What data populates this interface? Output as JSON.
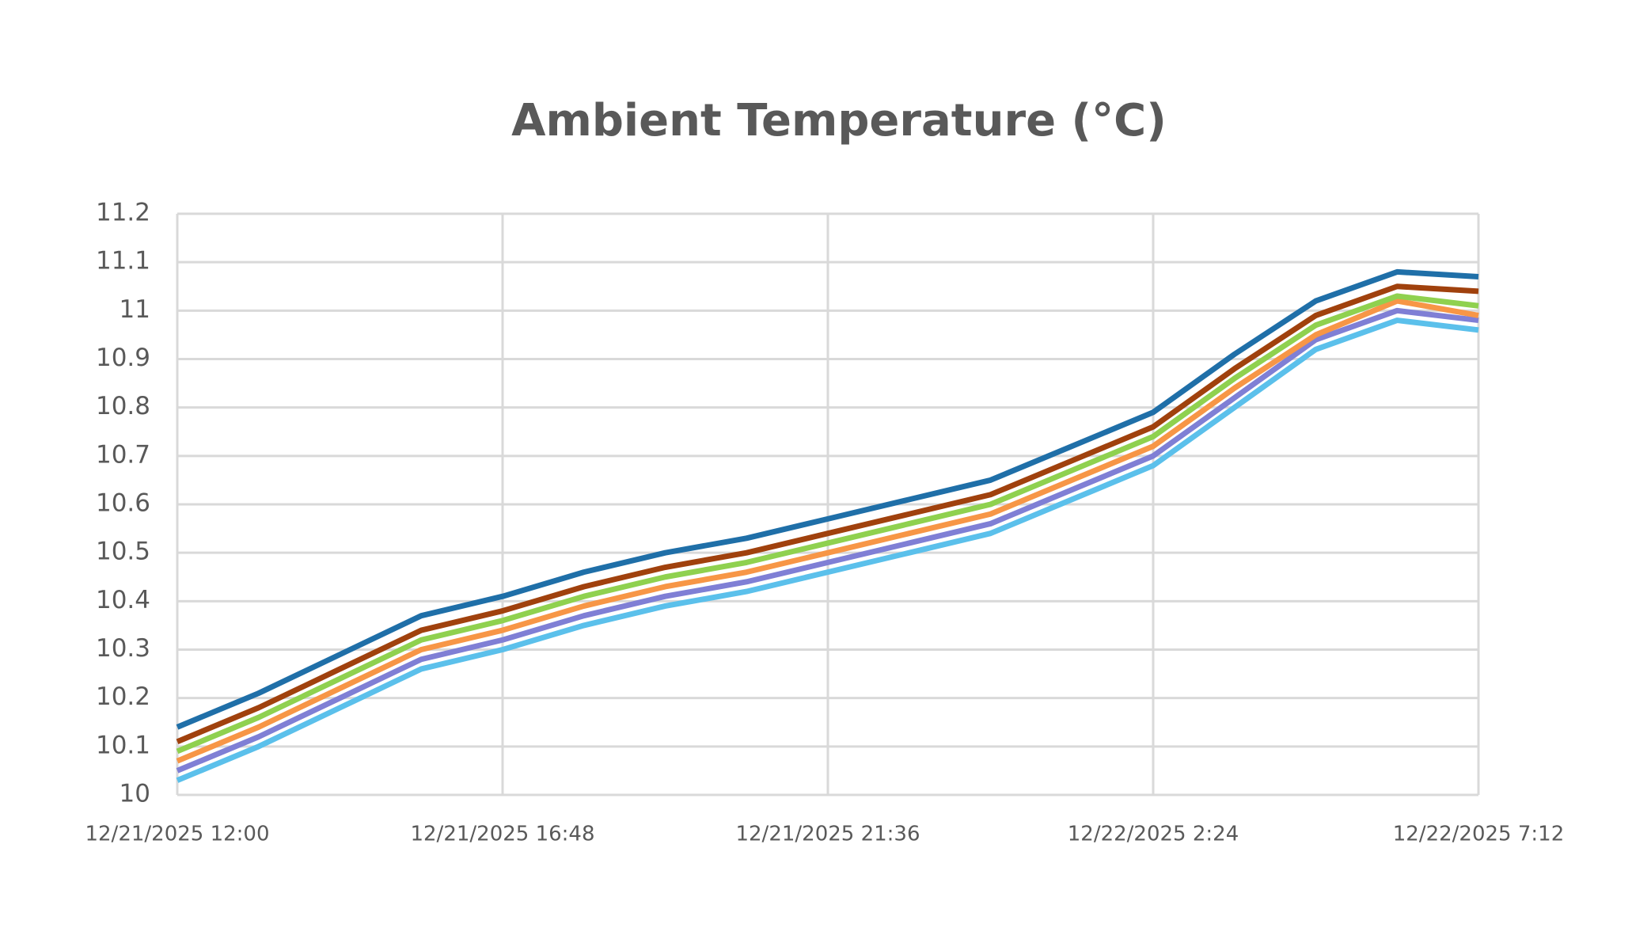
{
  "chart_data": {
    "type": "line",
    "title": "Ambient Temperature (°C)",
    "x": [
      "12/21/2025 12:00",
      "12/21/2025 13:12",
      "12/21/2025 14:24",
      "12/21/2025 15:36",
      "12/21/2025 16:48",
      "12/21/2025 18:00",
      "12/21/2025 19:12",
      "12/21/2025 20:24",
      "12/21/2025 21:36",
      "12/21/2025 22:48",
      "12/22/2025 0:00",
      "12/22/2025 1:12",
      "12/22/2025 2:24",
      "12/22/2025 3:36",
      "12/22/2025 4:48",
      "12/22/2025 6:00",
      "12/22/2025 7:12"
    ],
    "series": [
      {
        "color": "#1f6fa8",
        "values": [
          10.14,
          10.21,
          10.29,
          10.37,
          10.41,
          10.46,
          10.5,
          10.53,
          10.57,
          10.61,
          10.65,
          10.72,
          10.79,
          10.91,
          11.02,
          11.08,
          11.07
        ]
      },
      {
        "color": "#a0410d",
        "values": [
          10.11,
          10.18,
          10.26,
          10.34,
          10.38,
          10.43,
          10.47,
          10.5,
          10.54,
          10.58,
          10.62,
          10.69,
          10.76,
          10.88,
          10.99,
          11.05,
          11.04
        ]
      },
      {
        "color": "#8fd14f",
        "values": [
          10.09,
          10.16,
          10.24,
          10.32,
          10.36,
          10.41,
          10.45,
          10.48,
          10.52,
          10.56,
          10.6,
          10.67,
          10.74,
          10.86,
          10.97,
          11.03,
          11.01
        ]
      },
      {
        "color": "#f79646",
        "values": [
          10.07,
          10.14,
          10.22,
          10.3,
          10.34,
          10.39,
          10.43,
          10.46,
          10.5,
          10.54,
          10.58,
          10.65,
          10.72,
          10.84,
          10.95,
          11.02,
          10.99
        ]
      },
      {
        "color": "#7f7fd5",
        "values": [
          10.05,
          10.12,
          10.2,
          10.28,
          10.32,
          10.37,
          10.41,
          10.44,
          10.48,
          10.52,
          10.56,
          10.63,
          10.7,
          10.82,
          10.94,
          11.0,
          10.98
        ]
      },
      {
        "color": "#5bc0eb",
        "values": [
          10.03,
          10.1,
          10.18,
          10.26,
          10.3,
          10.35,
          10.39,
          10.42,
          10.46,
          10.5,
          10.54,
          10.61,
          10.68,
          10.8,
          10.92,
          10.98,
          10.96
        ]
      }
    ],
    "xlim": [
      "12/21/2025 12:00",
      "12/22/2025 7:12"
    ],
    "xticks": [
      "12/21/2025 12:00",
      "12/21/2025 16:48",
      "12/21/2025 21:36",
      "12/22/2025 2:24",
      "12/22/2025 7:12"
    ],
    "ylim": [
      10,
      11.2
    ],
    "yticks": [
      10,
      10.1,
      10.2,
      10.3,
      10.4,
      10.5,
      10.6,
      10.7,
      10.8,
      10.9,
      11,
      11.1,
      11.2
    ],
    "grid": true
  }
}
